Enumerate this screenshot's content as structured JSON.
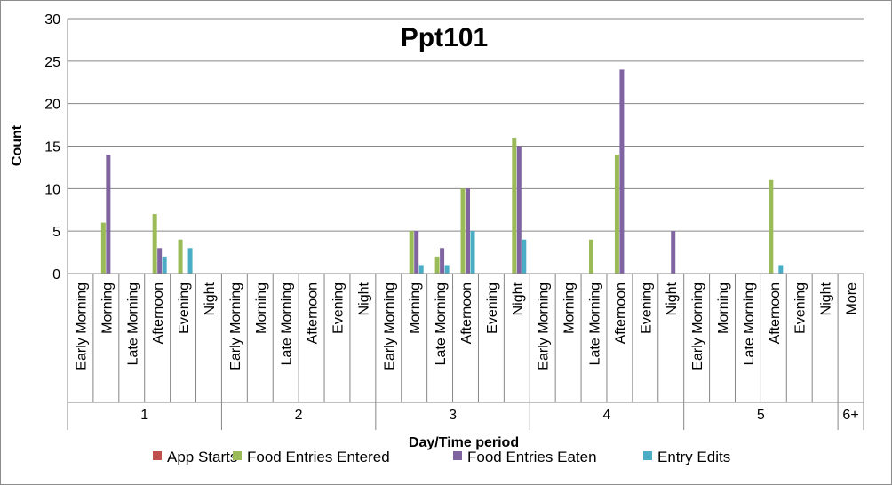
{
  "chart_data": {
    "type": "bar",
    "title": "Ppt101",
    "xlabel": "Day/Time period",
    "ylabel": "Count",
    "ylim": [
      0,
      30
    ],
    "yticks": [
      0,
      5,
      10,
      15,
      20,
      25,
      30
    ],
    "grid": true,
    "legend_position": "bottom",
    "groups": [
      {
        "label": "1",
        "categories": [
          "Early Morning",
          "Morning",
          "Late Morning",
          "Afternoon",
          "Evening",
          "Night"
        ]
      },
      {
        "label": "2",
        "categories": [
          "Early Morning",
          "Morning",
          "Late Morning",
          "Afternoon",
          "Evening",
          "Night"
        ]
      },
      {
        "label": "3",
        "categories": [
          "Early Morning",
          "Morning",
          "Late Morning",
          "Afternoon",
          "Evening",
          "Night"
        ]
      },
      {
        "label": "4",
        "categories": [
          "Early Morning",
          "Morning",
          "Late Morning",
          "Afternoon",
          "Evening",
          "Night"
        ]
      },
      {
        "label": "5",
        "categories": [
          "Early Morning",
          "Morning",
          "Late Morning",
          "Afternoon",
          "Evening",
          "Night"
        ]
      },
      {
        "label": "6+",
        "categories": [
          "More"
        ]
      }
    ],
    "series": [
      {
        "name": "App Starts",
        "color": "#C0504D",
        "values": [
          0,
          0,
          0,
          0,
          0,
          0,
          0,
          0,
          0,
          0,
          0,
          0,
          0,
          0,
          0,
          0,
          0,
          0,
          0,
          0,
          0,
          0,
          0,
          0,
          0,
          0,
          0,
          0,
          0,
          0,
          0
        ]
      },
      {
        "name": "Food Entries Entered",
        "color": "#9BBB59",
        "values": [
          0,
          6,
          0,
          7,
          4,
          0,
          0,
          0,
          0,
          0,
          0,
          0,
          0,
          5,
          2,
          10,
          0,
          16,
          0,
          0,
          4,
          14,
          0,
          0,
          0,
          0,
          0,
          11,
          0,
          0,
          0
        ]
      },
      {
        "name": "Food Entries Eaten",
        "color": "#8064A2",
        "values": [
          0,
          14,
          0,
          3,
          0,
          0,
          0,
          0,
          0,
          0,
          0,
          0,
          0,
          5,
          3,
          10,
          0,
          15,
          0,
          0,
          0,
          24,
          0,
          5,
          0,
          0,
          0,
          0,
          0,
          0,
          0
        ]
      },
      {
        "name": "Entry Edits",
        "color": "#4BACC6",
        "values": [
          0,
          0,
          0,
          2,
          3,
          0,
          0,
          0,
          0,
          0,
          0,
          0,
          0,
          1,
          1,
          5,
          0,
          4,
          0,
          0,
          0,
          0,
          0,
          0,
          0,
          0,
          0,
          1,
          0,
          0,
          0
        ]
      }
    ]
  }
}
